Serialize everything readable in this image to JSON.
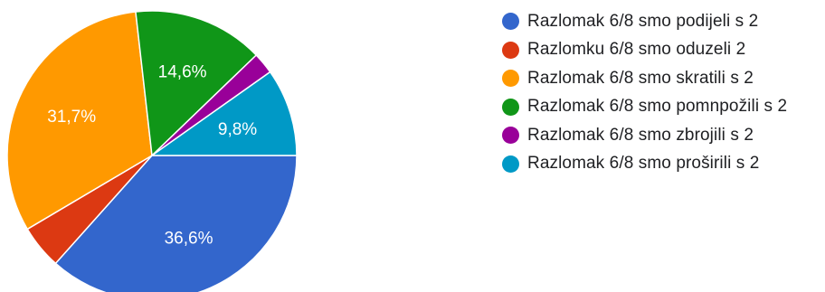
{
  "chart_data": {
    "type": "pie",
    "categories": [
      "Razlomak 6/8 smo podijeli s 2",
      "Razlomku 6/8 smo oduzeli 2",
      "Razlomak 6/8 smo skratili s 2",
      "Razlomak 6/8 smo pomnpožili s 2",
      "Razlomak 6/8 smo zbrojili s 2",
      "Razlomak 6/8 smo proširili s 2"
    ],
    "values": [
      36.6,
      4.9,
      31.7,
      14.6,
      2.4,
      9.8
    ],
    "data_labels": [
      "36,6%",
      "",
      "31,7%",
      "14,6%",
      "",
      "9,8%"
    ],
    "colors": [
      "#3366cc",
      "#dc3912",
      "#ff9900",
      "#109618",
      "#990099",
      "#0099c6"
    ],
    "legend_position": "right"
  }
}
